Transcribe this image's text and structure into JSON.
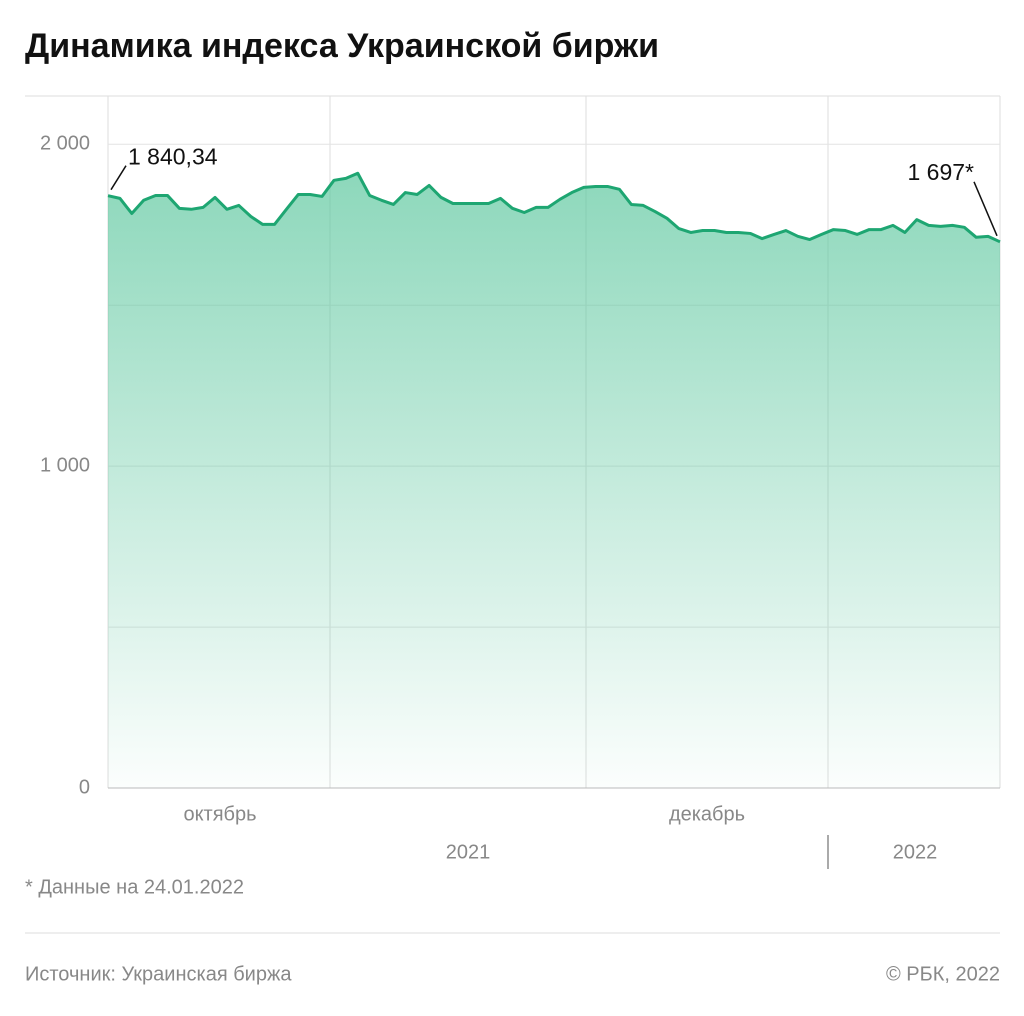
{
  "chart_data": {
    "type": "area",
    "title": "Динамика индекса Украинской биржи",
    "values": [
      1840.34,
      1832,
      1785,
      1826,
      1841,
      1841,
      1801,
      1798,
      1804,
      1835,
      1798,
      1810,
      1776,
      1751,
      1751,
      1798,
      1844,
      1844,
      1838,
      1888,
      1894,
      1910,
      1841,
      1826,
      1813,
      1850,
      1844,
      1872,
      1835,
      1816,
      1816,
      1816,
      1816,
      1832,
      1801,
      1788,
      1804,
      1804,
      1829,
      1850,
      1866,
      1869,
      1869,
      1860,
      1813,
      1810,
      1791,
      1770,
      1738,
      1726,
      1732,
      1732,
      1726,
      1726,
      1723,
      1707,
      1720,
      1732,
      1714,
      1704,
      1720,
      1735,
      1732,
      1720,
      1735,
      1735,
      1748,
      1726,
      1766,
      1748,
      1745,
      1748,
      1742,
      1711,
      1714,
      1697
    ],
    "value_labels": [
      "1 840,34",
      null,
      null,
      null,
      null,
      null,
      null,
      null,
      null,
      null,
      null,
      null,
      null,
      null,
      null,
      null,
      null,
      null,
      null,
      null,
      null,
      null,
      null,
      null,
      null,
      null,
      null,
      null,
      null,
      null,
      null,
      null,
      null,
      null,
      null,
      null,
      null,
      null,
      null,
      null,
      null,
      null,
      null,
      null,
      null,
      null,
      null,
      null,
      null,
      null,
      null,
      null,
      null,
      null,
      null,
      null,
      null,
      null,
      null,
      null,
      null,
      null,
      null,
      null,
      null,
      null,
      null,
      null,
      null,
      null,
      null,
      null,
      null,
      null,
      null,
      "1 697*"
    ],
    "color": "#1ea672",
    "ylim": [
      0,
      2150
    ],
    "yticks": [
      0,
      {
        "value": 1000,
        "label": "1 000"
      },
      {
        "value": 2000,
        "label": "2 000"
      }
    ],
    "minor_yticks": [
      500,
      1500
    ],
    "grid": true,
    "month_labels": [
      "октябрь",
      "декабрь"
    ],
    "year_labels": [
      "2021",
      "2022"
    ],
    "footnote": "* Данные на 24.01.2022",
    "source": "Источник: Украинская биржа",
    "copyright": "© РБК, 2022"
  }
}
